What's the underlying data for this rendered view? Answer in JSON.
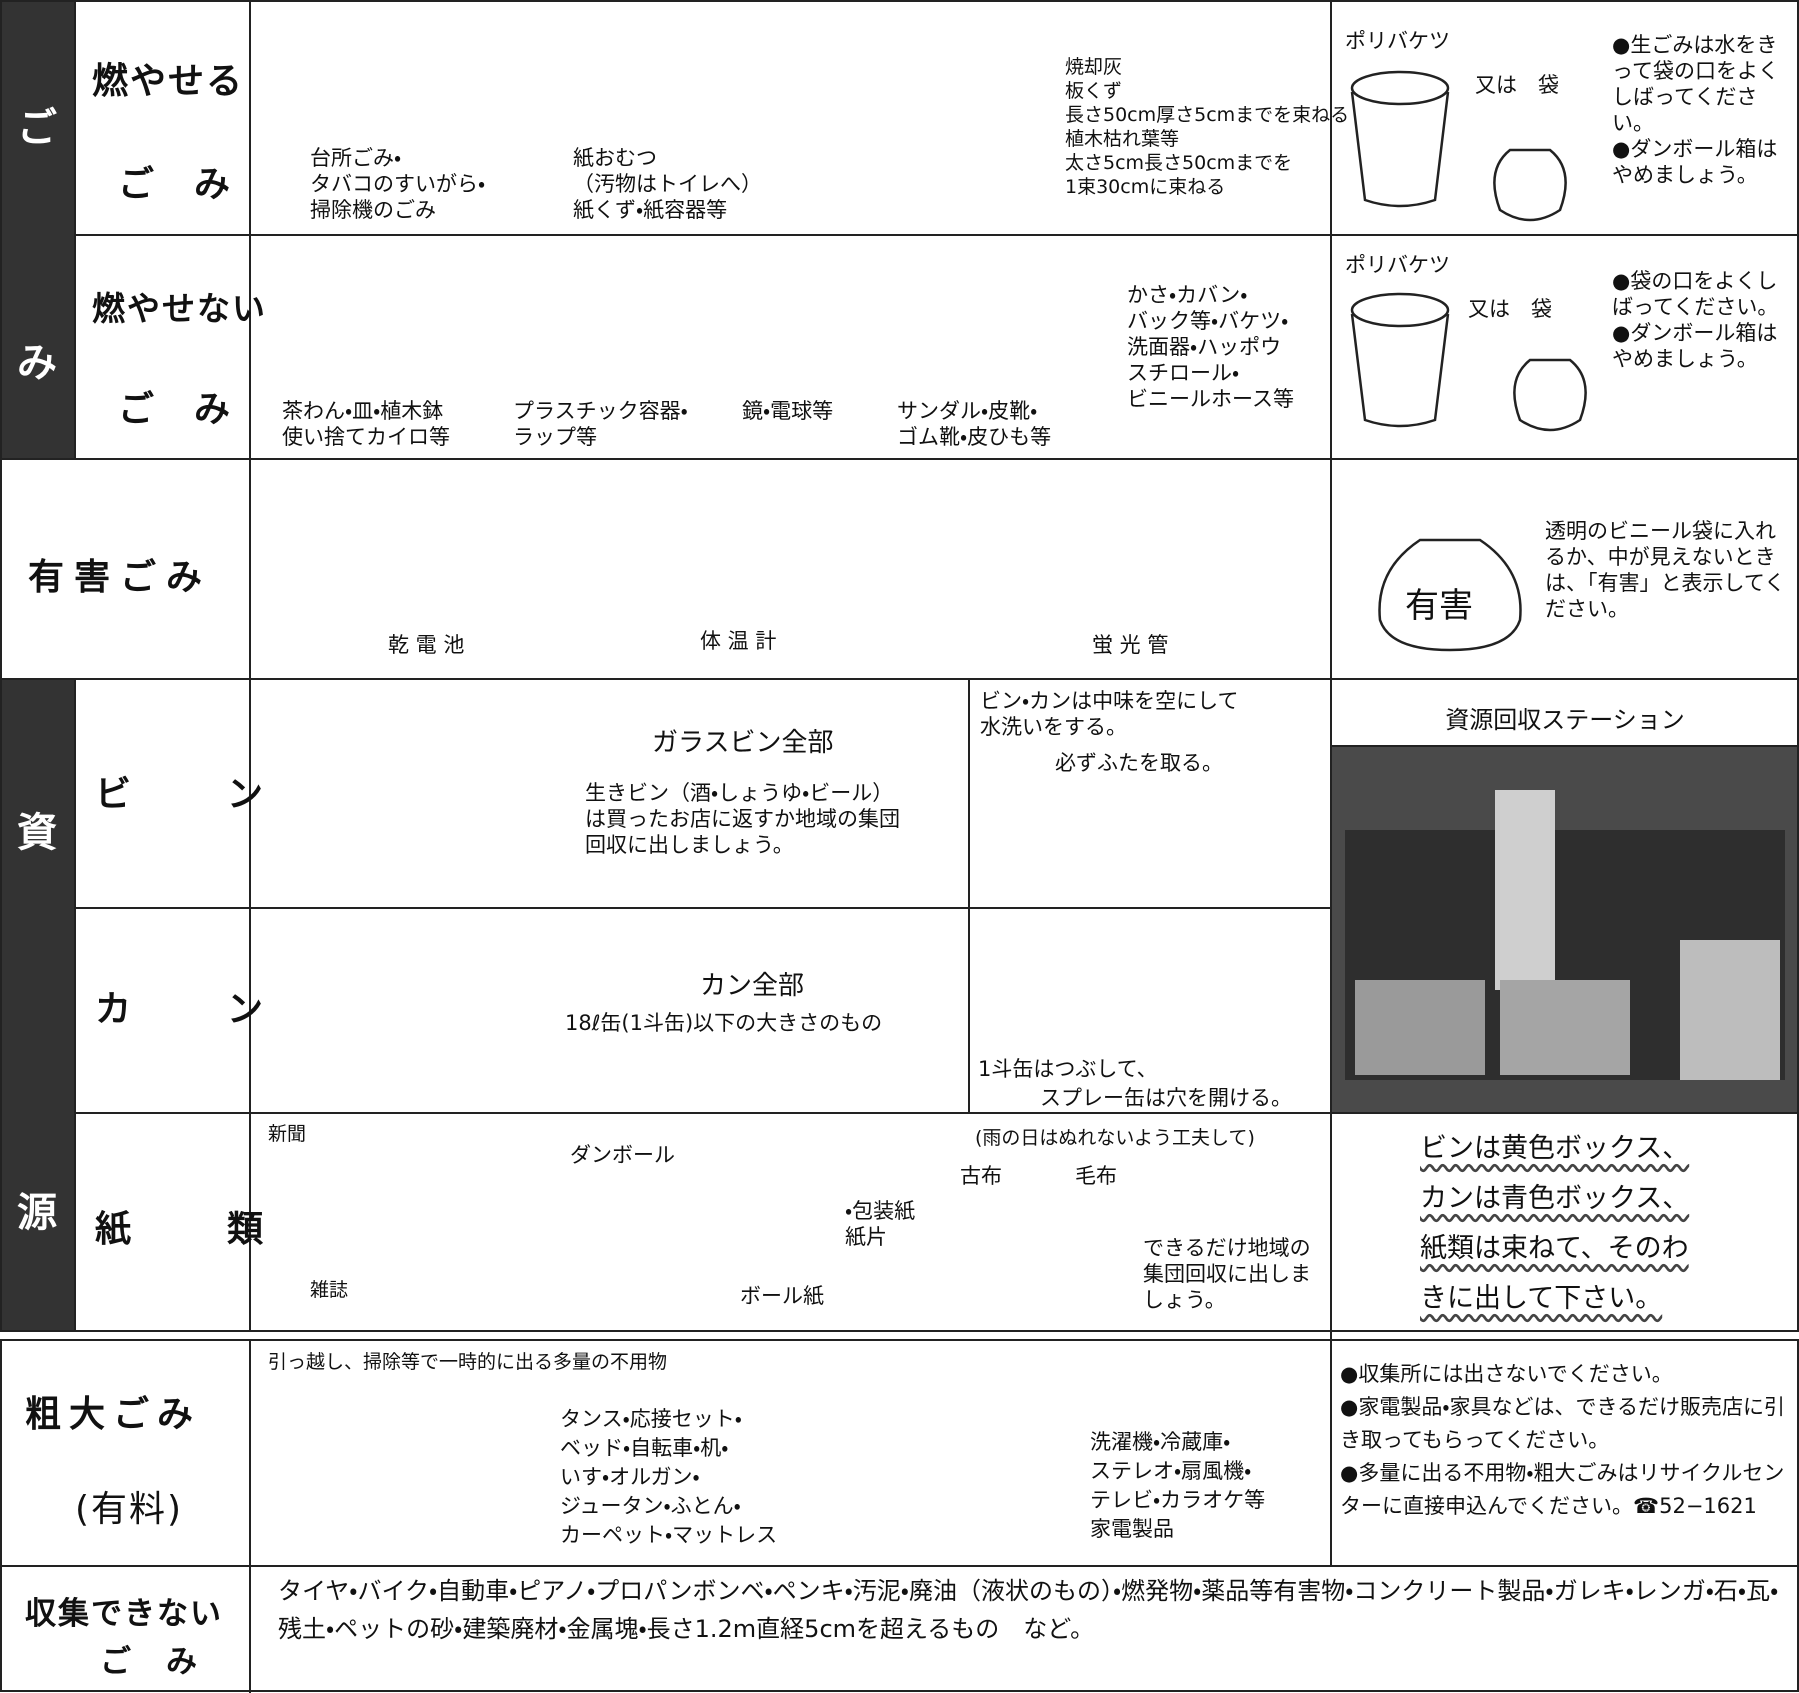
{
  "side_labels": {
    "gomi": [
      "ご",
      "み"
    ],
    "shigen": [
      "資",
      "源"
    ]
  },
  "burnable": {
    "name": [
      "燃やせる",
      "ご　み"
    ],
    "captions": [
      [
        "台所ごみ・",
        "タバコのすいがら・",
        "掃除機のごみ"
      ],
      [
        "紙おむつ",
        "（汚物はトイレへ）",
        "紙くず・紙容器等"
      ],
      [
        "焼却灰",
        "板くず",
        "長さ50cm厚さ5cmまでを束ねる",
        "植木枯れ葉等",
        "太さ5cm長さ50cmまでを",
        "1束30cmに束ねる"
      ]
    ],
    "container": "ポリバケツ",
    "or_bag": "又は　袋",
    "notes": [
      "●生ごみは水をきって袋の口をよくしばってください。",
      "●ダンボール箱はやめましょう。"
    ]
  },
  "non_burnable": {
    "name": [
      "燃やせない",
      "ご　み"
    ],
    "captions": [
      [
        "茶わん・皿・植木鉢",
        "使い捨てカイロ等"
      ],
      [
        "プラスチック容器・",
        "ラップ等"
      ],
      [
        "鏡・電球等"
      ],
      [
        "サンダル・皮靴・",
        "ゴム靴・皮ひも等"
      ],
      [
        "かさ・カバン・",
        "バック等・バケツ・",
        "洗面器・ハッポウ",
        "スチロール・",
        "ビニールホース等"
      ]
    ],
    "container": "ポリバケツ",
    "or_bag": "又は　袋",
    "notes": [
      "●袋の口をよくしばってください。",
      "●ダンボール箱はやめましょう。"
    ]
  },
  "hazardous": {
    "name": "有害ごみ",
    "captions": [
      "乾 電 池",
      "体 温 計",
      "蛍 光 管"
    ],
    "bag_label": "有害",
    "note": "透明のビニール袋に入れるか、中が見えないときは、「有害」と表示してください。"
  },
  "bottles": {
    "name": "ビ　ン",
    "heading": "ガラスビン全部",
    "text": [
      "生きビン（酒・しょうゆ・ビール）",
      "は買ったお店に返すか地域の集団",
      "回収に出しましょう。"
    ]
  },
  "wash_note": [
    "ビン・カンは中味を空にして",
    "水洗いをする。"
  ],
  "cap_note": "必ずふたを取る。",
  "station_title": "資源回収ステーション",
  "cans": {
    "name": "カ　ン",
    "heading": "カン全部",
    "text": "18ℓ缶(1斗缶)以下の大きさのもの",
    "notes": [
      "1斗缶はつぶして、",
      "スプレー缶は穴を開ける。"
    ]
  },
  "paper": {
    "name": "紙　類",
    "newspaper": "新聞",
    "magazine": "雑誌",
    "cardboard": "ダンボール",
    "boardpaper": "ボール紙",
    "wrapping": [
      "・包装紙",
      "紙片"
    ],
    "rain_note": "(雨の日はぬれないよう工夫して)",
    "old_cloth": "古布",
    "blanket": "毛布",
    "note": [
      "できるだけ地域の",
      "集団回収に出しま",
      "しょう。"
    ],
    "box_rules": [
      "ビンは黄色ボックス、",
      "カンは青色ボックス、",
      "紙類は束ねて、そのわ",
      "きに出して下さい。"
    ]
  },
  "bulky": {
    "name": [
      "粗大ごみ",
      "(有料)"
    ],
    "header": "引っ越し、掃除等で一時的に出る多量の不用物",
    "furniture": [
      "タンス・応接セット・",
      "ベッド・自転車・机・",
      "いす・オルガン・",
      "ジュータン・ふとん・",
      "カーペット・マットレス"
    ],
    "appliances": [
      "洗濯機・冷蔵庫・",
      "ステレオ・扇風機・",
      "テレビ・カラオケ等",
      "家電製品"
    ],
    "notes": [
      "●収集所には出さないでください。",
      "●家電製品・家具などは、できるだけ販売店に引き取ってもらってください。",
      "●多量に出る不用物・粗大ごみはリサイクルセンターに直接申込んでください。☎52−1621"
    ]
  },
  "uncollectable": {
    "name": [
      "収集できない",
      "ご　み"
    ],
    "text": "タイヤ・バイク・自動車・ピアノ・プロパンボンベ・ペンキ・汚泥・廃油（液状のもの）・燃発物・薬品等有害物・コンクリート製品・ガレキ・レンガ・石・瓦・残土・ペットの砂・建築廃材・金属塊・長さ1.2m直経5cmを超えるもの　など。"
  }
}
